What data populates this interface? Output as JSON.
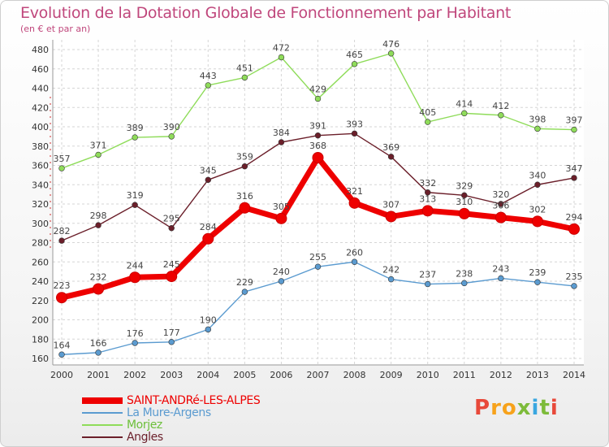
{
  "page": {
    "title": "Evolution de la Dotation Globale de Fonctionnement par Habitant",
    "subtitle": "(en € et par an)",
    "logo": "Proxiti",
    "logo_colors": [
      "#e8493a",
      "#f7a21b",
      "#f7a21b",
      "#7dbb3a",
      "#3aa7e0",
      "#7dbb3a",
      "#e8493a"
    ]
  },
  "chart_data": {
    "type": "line",
    "title": "Evolution de la Dotation Globale de Fonctionnement par Habitant",
    "subtitle": "(en € et par an)",
    "x": [
      "2000",
      "2001",
      "2002",
      "2003",
      "2004",
      "2005",
      "2006",
      "2007",
      "2008",
      "2009",
      "2010",
      "2011",
      "2012",
      "2013",
      "2014"
    ],
    "ylim": [
      160,
      480
    ],
    "yticks": [
      160,
      180,
      200,
      220,
      240,
      260,
      280,
      300,
      320,
      340,
      360,
      380,
      400,
      420,
      440,
      460,
      480
    ],
    "grid": true,
    "legend_position": "bottom-left",
    "series": [
      {
        "name": "SAINT-ANDRé-LES-ALPES",
        "color": "#ee0000",
        "values": [
          223,
          232,
          244,
          245,
          284,
          316,
          305,
          368,
          321,
          307,
          313,
          310,
          306,
          302,
          294
        ]
      },
      {
        "name": "La Mure-Argens",
        "color": "#5b9bd0",
        "values": [
          164,
          166,
          176,
          177,
          190,
          229,
          240,
          255,
          260,
          242,
          237,
          238,
          243,
          239,
          235
        ]
      },
      {
        "name": "Morjez",
        "color": "#8fdc5a",
        "values": [
          357,
          371,
          389,
          390,
          443,
          451,
          472,
          429,
          465,
          476,
          405,
          414,
          412,
          398,
          397
        ]
      },
      {
        "name": "Angles",
        "color": "#6b1f2a",
        "values": [
          282,
          298,
          319,
          295,
          345,
          359,
          384,
          391,
          393,
          369,
          332,
          329,
          320,
          340,
          347
        ]
      }
    ]
  }
}
